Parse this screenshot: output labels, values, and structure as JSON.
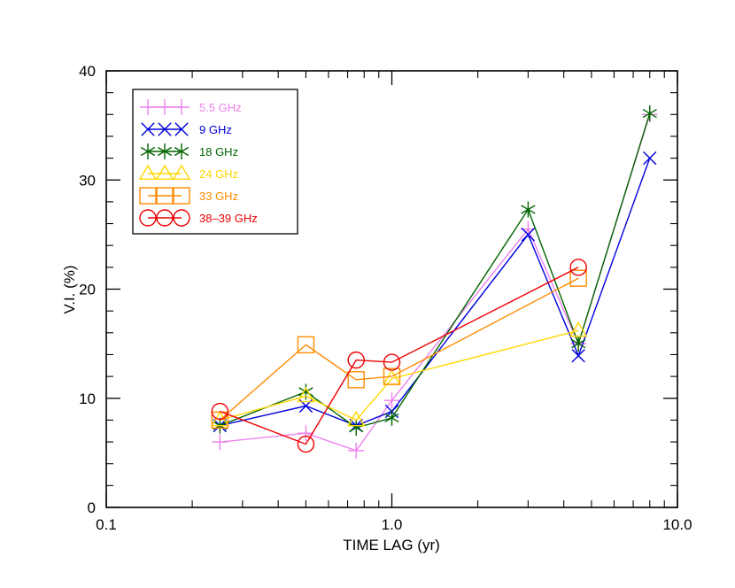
{
  "chart_data": {
    "type": "line",
    "title": "",
    "xlabel": "TIME LAG (yr)",
    "ylabel": "V.I. (%)",
    "x_scale": "log",
    "xlim": [
      0.1,
      10.0
    ],
    "ylim": [
      0,
      40
    ],
    "x_ticks": [
      {
        "value": 0.1,
        "label": "0.1"
      },
      {
        "value": 1.0,
        "label": "1.0"
      },
      {
        "value": 10.0,
        "label": "10.0"
      }
    ],
    "y_ticks": [
      {
        "value": 0,
        "label": "0"
      },
      {
        "value": 10,
        "label": "10"
      },
      {
        "value": 20,
        "label": "20"
      },
      {
        "value": 30,
        "label": "30"
      },
      {
        "value": 40,
        "label": "40"
      }
    ],
    "legend_position": "top-left",
    "series": [
      {
        "name": "5.5 GHz",
        "color": "#ee82ee",
        "marker": "plus",
        "x": [
          0.25,
          0.5,
          0.75,
          1.0,
          3.0,
          4.5,
          8.0
        ],
        "y": [
          6.0,
          6.8,
          5.2,
          9.8,
          25.5,
          15.0,
          36.0
        ]
      },
      {
        "name": "9 GHz",
        "color": "#0000dd",
        "marker": "x",
        "x": [
          0.25,
          0.5,
          0.75,
          1.0,
          3.0,
          4.5,
          8.0
        ],
        "y": [
          7.5,
          9.3,
          7.5,
          8.8,
          25.0,
          13.9,
          32.0
        ]
      },
      {
        "name": "18 GHz",
        "color": "#006400",
        "marker": "asterisk",
        "x": [
          0.25,
          0.5,
          0.75,
          1.0,
          3.0,
          4.5,
          8.0
        ],
        "y": [
          7.5,
          10.6,
          7.3,
          8.2,
          27.3,
          15.0,
          36.1
        ]
      },
      {
        "name": "24 GHz",
        "color": "#ffd700",
        "marker": "triangle",
        "x": [
          0.25,
          0.5,
          0.75,
          1.0,
          4.5
        ],
        "y": [
          8.0,
          10.2,
          8.0,
          11.8,
          16.2
        ]
      },
      {
        "name": "33 GHz",
        "color": "#ff8c00",
        "marker": "square",
        "x": [
          0.25,
          0.5,
          0.75,
          1.0,
          4.5
        ],
        "y": [
          8.0,
          14.9,
          11.7,
          12.0,
          21.0
        ]
      },
      {
        "name": "38–39 GHz",
        "color": "#ee0000",
        "marker": "circle",
        "x": [
          0.25,
          0.5,
          0.75,
          1.0,
          4.5
        ],
        "y": [
          8.8,
          5.8,
          13.5,
          13.3,
          22.0
        ]
      }
    ]
  }
}
